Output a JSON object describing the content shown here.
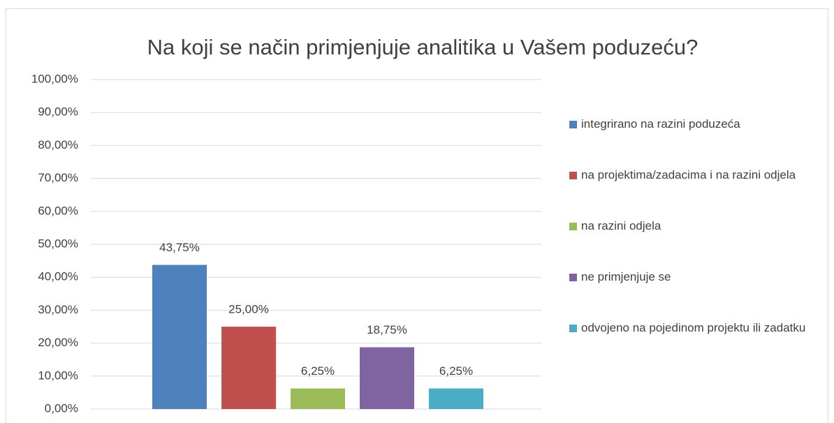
{
  "chart_data": {
    "type": "bar",
    "title": "Na koji se način primjenjuje analitika u Vašem poduzeću?",
    "series": [
      {
        "name": "integrirano na razini poduzeća",
        "color": "#4f81bd",
        "values": [
          43.75
        ],
        "value_labels": [
          "43,75%"
        ]
      },
      {
        "name": "na projektima/zadacima i na razini odjela",
        "color": "#c0504d",
        "values": [
          25
        ],
        "value_labels": [
          "25,00%"
        ]
      },
      {
        "name": "na razini odjela",
        "color": "#9bbb59",
        "values": [
          6.25
        ],
        "value_labels": [
          "6,25%"
        ]
      },
      {
        "name": "ne primjenjuje se",
        "color": "#8064a2",
        "values": [
          18.75
        ],
        "value_labels": [
          "18,75%"
        ]
      },
      {
        "name": "odvojeno na pojedinom projektu ili zadatku",
        "color": "#4bacc6",
        "values": [
          6.25
        ],
        "value_labels": [
          "6,25%"
        ]
      }
    ],
    "ylim": [
      0,
      100
    ],
    "yticks": [
      {
        "value": 0,
        "label": "0,00%"
      },
      {
        "value": 10,
        "label": "10,00%"
      },
      {
        "value": 20,
        "label": "20,00%"
      },
      {
        "value": 30,
        "label": "30,00%"
      },
      {
        "value": 40,
        "label": "40,00%"
      },
      {
        "value": 50,
        "label": "50,00%"
      },
      {
        "value": 60,
        "label": "60,00%"
      },
      {
        "value": 70,
        "label": "70,00%"
      },
      {
        "value": 80,
        "label": "80,00%"
      },
      {
        "value": 90,
        "label": "90,00%"
      },
      {
        "value": 100,
        "label": "100,00%"
      }
    ],
    "grid": true,
    "legend": "right"
  }
}
